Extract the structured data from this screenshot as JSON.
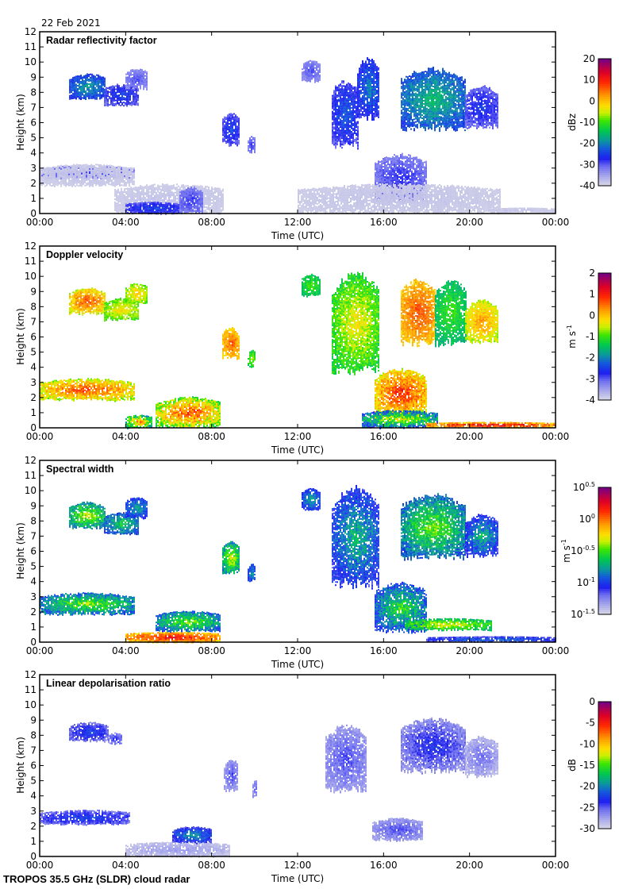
{
  "header": {
    "date": "22 Feb 2021"
  },
  "footer": {
    "instrument": "TROPOS 35.5 GHz (SLDR) cloud radar"
  },
  "chart_data": [
    {
      "type": "heatmap",
      "title": "Radar reflectivity factor",
      "xlabel": "Time (UTC)",
      "ylabel": "Height (km)",
      "xlim": [
        0,
        24
      ],
      "ylim": [
        0,
        12
      ],
      "xticks": [
        0,
        4,
        8,
        12,
        16,
        20,
        24
      ],
      "xtick_labels": [
        "00:00",
        "04:00",
        "08:00",
        "12:00",
        "16:00",
        "20:00",
        "00:00"
      ],
      "yticks": [
        0,
        1,
        2,
        3,
        4,
        5,
        6,
        7,
        8,
        9,
        10,
        11,
        12
      ],
      "ytick_labels": [
        "0",
        "1",
        "2",
        "3",
        "4",
        "5",
        "6",
        "7",
        "8",
        "9",
        "10",
        "11",
        "12"
      ],
      "colorbar": {
        "label": "dBz",
        "range": [
          -40,
          20
        ],
        "ticks": [
          20,
          10,
          0,
          -10,
          -20,
          -30,
          -40
        ],
        "tick_labels": [
          "20",
          "10",
          "0",
          "-10",
          "-20",
          "-30",
          "-40"
        ]
      },
      "regions": [
        {
          "t0": 1.4,
          "t1": 3.0,
          "h0": 7.5,
          "h1": 9.3,
          "v": -22,
          "spread": 8
        },
        {
          "t0": 3.0,
          "t1": 4.6,
          "h0": 7.1,
          "h1": 8.6,
          "v": -27,
          "spread": 6
        },
        {
          "t0": 4.0,
          "t1": 5.0,
          "h0": 8.2,
          "h1": 9.6,
          "v": -31,
          "spread": 4
        },
        {
          "t0": 8.5,
          "t1": 9.3,
          "h0": 4.5,
          "h1": 6.7,
          "v": -27,
          "spread": 6
        },
        {
          "t0": 9.7,
          "t1": 10.0,
          "h0": 4.0,
          "h1": 5.2,
          "v": -30,
          "spread": 4
        },
        {
          "t0": 0.0,
          "t1": 4.4,
          "h0": 2.3,
          "h1": 3.2,
          "v": -30,
          "spread": 4
        },
        {
          "t0": 0.0,
          "t1": 4.4,
          "h0": 1.8,
          "h1": 3.3,
          "v": -38,
          "spread": 1
        },
        {
          "t0": 3.5,
          "t1": 8.5,
          "h0": 0.0,
          "h1": 2.0,
          "v": -38,
          "spread": 1
        },
        {
          "t0": 4.0,
          "t1": 6.5,
          "h0": 0.0,
          "h1": 0.8,
          "v": -27,
          "spread": 6
        },
        {
          "t0": 6.5,
          "t1": 7.6,
          "h0": 0.0,
          "h1": 1.8,
          "v": -30,
          "spread": 4
        },
        {
          "t0": 13.6,
          "t1": 14.8,
          "h0": 4.3,
          "h1": 9.0,
          "v": -26,
          "spread": 8
        },
        {
          "t0": 14.8,
          "t1": 15.8,
          "h0": 6.2,
          "h1": 10.4,
          "v": -24,
          "spread": 8
        },
        {
          "t0": 12.2,
          "t1": 13.0,
          "h0": 8.7,
          "h1": 10.2,
          "v": -31,
          "spread": 4
        },
        {
          "t0": 15.6,
          "t1": 18.0,
          "h0": 0.8,
          "h1": 4.0,
          "v": -30,
          "spread": 5
        },
        {
          "t0": 12.0,
          "t1": 21.4,
          "h0": 0.0,
          "h1": 2.0,
          "v": -38,
          "spread": 1
        },
        {
          "t0": 16.8,
          "t1": 19.8,
          "h0": 5.4,
          "h1": 9.7,
          "v": -20,
          "spread": 9
        },
        {
          "t0": 19.8,
          "t1": 21.3,
          "h0": 5.6,
          "h1": 8.5,
          "v": -28,
          "spread": 6
        },
        {
          "t0": 21.0,
          "t1": 24.0,
          "h0": 0.1,
          "h1": 0.4,
          "v": -38,
          "spread": 1
        }
      ]
    },
    {
      "type": "heatmap",
      "title": "Doppler velocity",
      "xlabel": "Time (UTC)",
      "ylabel": "Height (km)",
      "xlim": [
        0,
        24
      ],
      "ylim": [
        0,
        12
      ],
      "xticks": [
        0,
        4,
        8,
        12,
        16,
        20,
        24
      ],
      "xtick_labels": [
        "00:00",
        "04:00",
        "08:00",
        "12:00",
        "16:00",
        "20:00",
        "00:00"
      ],
      "yticks": [
        0,
        1,
        2,
        3,
        4,
        5,
        6,
        7,
        8,
        9,
        10,
        11,
        12
      ],
      "ytick_labels": [
        "0",
        "1",
        "2",
        "3",
        "4",
        "5",
        "6",
        "7",
        "8",
        "9",
        "10",
        "11",
        "12"
      ],
      "colorbar": {
        "label": "m s-1",
        "range": [
          -4,
          2
        ],
        "ticks": [
          2,
          1,
          0,
          -1,
          -2,
          -3,
          -4
        ],
        "tick_labels": [
          "2",
          "1",
          "0",
          "-1",
          "-2",
          "-3",
          "-4"
        ]
      },
      "regions": [
        {
          "t0": 1.4,
          "t1": 3.0,
          "h0": 7.5,
          "h1": 9.3,
          "v": 0.1,
          "spread": 1.2
        },
        {
          "t0": 3.0,
          "t1": 4.6,
          "h0": 7.1,
          "h1": 8.6,
          "v": -0.6,
          "spread": 0.8
        },
        {
          "t0": 4.0,
          "t1": 5.0,
          "h0": 8.2,
          "h1": 9.6,
          "v": -0.5,
          "spread": 0.8
        },
        {
          "t0": 8.5,
          "t1": 9.3,
          "h0": 4.5,
          "h1": 6.7,
          "v": 0.2,
          "spread": 0.9
        },
        {
          "t0": 9.7,
          "t1": 10.0,
          "h0": 4.0,
          "h1": 5.2,
          "v": -1.0,
          "spread": 0.6
        },
        {
          "t0": 0.0,
          "t1": 4.4,
          "h0": 1.8,
          "h1": 3.3,
          "v": 0.0,
          "spread": 1.4
        },
        {
          "t0": 4.0,
          "t1": 5.2,
          "h0": 0.0,
          "h1": 0.9,
          "v": -0.8,
          "spread": 2.0
        },
        {
          "t0": 5.4,
          "t1": 8.4,
          "h0": 0.0,
          "h1": 2.1,
          "v": -0.2,
          "spread": 1.8
        },
        {
          "t0": 13.6,
          "t1": 15.8,
          "h0": 3.5,
          "h1": 10.4,
          "v": -0.8,
          "spread": 1.0
        },
        {
          "t0": 12.2,
          "t1": 13.0,
          "h0": 8.7,
          "h1": 10.2,
          "v": -1.2,
          "spread": 0.6
        },
        {
          "t0": 15.6,
          "t1": 18.0,
          "h0": 0.6,
          "h1": 4.0,
          "v": 0.2,
          "spread": 1.4
        },
        {
          "t0": 15.0,
          "t1": 18.5,
          "h0": 0.0,
          "h1": 1.2,
          "v": -1.5,
          "spread": 2.0
        },
        {
          "t0": 16.8,
          "t1": 18.4,
          "h0": 5.4,
          "h1": 9.9,
          "v": 0.3,
          "spread": 0.8
        },
        {
          "t0": 18.4,
          "t1": 19.8,
          "h0": 5.4,
          "h1": 9.9,
          "v": -1.3,
          "spread": 0.6
        },
        {
          "t0": 19.8,
          "t1": 21.3,
          "h0": 5.6,
          "h1": 8.5,
          "v": -0.2,
          "spread": 0.9
        },
        {
          "t0": 18.0,
          "t1": 24.0,
          "h0": 0.05,
          "h1": 0.4,
          "v": 0.6,
          "spread": 1.5
        }
      ]
    },
    {
      "type": "heatmap",
      "title": "Spectral width",
      "xlabel": "Time (UTC)",
      "ylabel": "Height (km)",
      "xlim": [
        0,
        24
      ],
      "ylim": [
        0,
        12
      ],
      "xticks": [
        0,
        4,
        8,
        12,
        16,
        20,
        24
      ],
      "xtick_labels": [
        "00:00",
        "04:00",
        "08:00",
        "12:00",
        "16:00",
        "20:00",
        "00:00"
      ],
      "yticks": [
        0,
        1,
        2,
        3,
        4,
        5,
        6,
        7,
        8,
        9,
        10,
        11,
        12
      ],
      "ytick_labels": [
        "0",
        "1",
        "2",
        "3",
        "4",
        "5",
        "6",
        "7",
        "8",
        "9",
        "10",
        "11",
        "12"
      ],
      "colorbar": {
        "label": "m s-1",
        "scale": "log10",
        "range": [
          -1.5,
          0.5
        ],
        "ticks": [
          0.5,
          0,
          -0.5,
          -1,
          -1.5
        ],
        "tick_labels": [
          "10^0.5",
          "10^0",
          "10^-0.5",
          "10^-1",
          "10^-1.5"
        ]
      },
      "regions": [
        {
          "t0": 1.4,
          "t1": 3.0,
          "h0": 7.5,
          "h1": 9.3,
          "v": -0.6,
          "spread": 0.5
        },
        {
          "t0": 3.0,
          "t1": 4.6,
          "h0": 7.1,
          "h1": 8.6,
          "v": -0.8,
          "spread": 0.4
        },
        {
          "t0": 4.0,
          "t1": 5.0,
          "h0": 8.2,
          "h1": 9.6,
          "v": -0.9,
          "spread": 0.3
        },
        {
          "t0": 8.5,
          "t1": 9.3,
          "h0": 4.5,
          "h1": 6.7,
          "v": -0.6,
          "spread": 0.5
        },
        {
          "t0": 9.7,
          "t1": 10.0,
          "h0": 4.0,
          "h1": 5.2,
          "v": -0.9,
          "spread": 0.3
        },
        {
          "t0": 0.0,
          "t1": 4.4,
          "h0": 1.8,
          "h1": 3.3,
          "v": -0.7,
          "spread": 0.5
        },
        {
          "t0": 4.0,
          "t1": 8.4,
          "h0": 0.0,
          "h1": 0.7,
          "v": 0.0,
          "spread": 0.4
        },
        {
          "t0": 5.4,
          "t1": 8.4,
          "h0": 0.7,
          "h1": 2.1,
          "v": -0.7,
          "spread": 0.5
        },
        {
          "t0": 13.6,
          "t1": 15.8,
          "h0": 3.5,
          "h1": 10.4,
          "v": -0.9,
          "spread": 0.4
        },
        {
          "t0": 12.2,
          "t1": 13.0,
          "h0": 8.7,
          "h1": 10.2,
          "v": -0.9,
          "spread": 0.3
        },
        {
          "t0": 15.6,
          "t1": 18.0,
          "h0": 0.6,
          "h1": 4.0,
          "v": -0.8,
          "spread": 0.5
        },
        {
          "t0": 17.0,
          "t1": 21.0,
          "h0": 0.8,
          "h1": 1.6,
          "v": -0.5,
          "spread": 0.4
        },
        {
          "t0": 16.8,
          "t1": 19.8,
          "h0": 5.4,
          "h1": 9.9,
          "v": -0.7,
          "spread": 0.5
        },
        {
          "t0": 19.8,
          "t1": 21.3,
          "h0": 5.6,
          "h1": 8.5,
          "v": -0.9,
          "spread": 0.4
        },
        {
          "t0": 18.0,
          "t1": 24.0,
          "h0": 0.05,
          "h1": 0.4,
          "v": -1.0,
          "spread": 0.3
        }
      ]
    },
    {
      "type": "heatmap",
      "title": "Linear depolarisation ratio",
      "xlabel": "Time (UTC)",
      "ylabel": "Height (km)",
      "xlim": [
        0,
        24
      ],
      "ylim": [
        0,
        12
      ],
      "xticks": [
        0,
        4,
        8,
        12,
        16,
        20,
        24
      ],
      "xtick_labels": [
        "00:00",
        "04:00",
        "08:00",
        "12:00",
        "16:00",
        "20:00",
        "00:00"
      ],
      "yticks": [
        0,
        1,
        2,
        3,
        4,
        5,
        6,
        7,
        8,
        9,
        10,
        11,
        12
      ],
      "ytick_labels": [
        "0",
        "1",
        "2",
        "3",
        "4",
        "5",
        "6",
        "7",
        "8",
        "9",
        "10",
        "11",
        "12"
      ],
      "colorbar": {
        "label": "dB",
        "range": [
          -30,
          0
        ],
        "ticks": [
          0,
          -5,
          -10,
          -15,
          -20,
          -25,
          -30
        ],
        "tick_labels": [
          "0",
          "-5",
          "-10",
          "-15",
          "-20",
          "-25",
          "-30"
        ]
      },
      "regions": [
        {
          "t0": 1.4,
          "t1": 3.2,
          "h0": 7.6,
          "h1": 8.9,
          "v": -24,
          "spread": 4
        },
        {
          "t0": 3.2,
          "t1": 3.8,
          "h0": 7.4,
          "h1": 8.2,
          "v": -25,
          "spread": 3
        },
        {
          "t0": 8.6,
          "t1": 9.2,
          "h0": 4.3,
          "h1": 6.5,
          "v": -26,
          "spread": 3
        },
        {
          "t0": 9.9,
          "t1": 10.1,
          "h0": 3.9,
          "h1": 5.1,
          "v": -26,
          "spread": 2
        },
        {
          "t0": 0.0,
          "t1": 4.2,
          "h0": 2.1,
          "h1": 3.1,
          "v": -24,
          "spread": 4
        },
        {
          "t0": 4.0,
          "t1": 8.8,
          "h0": 0.0,
          "h1": 1.0,
          "v": -28,
          "spread": 2
        },
        {
          "t0": 6.2,
          "t1": 8.0,
          "h0": 0.9,
          "h1": 2.0,
          "v": -22,
          "spread": 5
        },
        {
          "t0": 13.3,
          "t1": 15.2,
          "h0": 4.2,
          "h1": 8.8,
          "v": -26,
          "spread": 3
        },
        {
          "t0": 15.5,
          "t1": 17.8,
          "h0": 1.0,
          "h1": 2.6,
          "v": -26,
          "spread": 3
        },
        {
          "t0": 16.8,
          "t1": 19.8,
          "h0": 5.5,
          "h1": 9.2,
          "v": -25,
          "spread": 4
        },
        {
          "t0": 19.8,
          "t1": 21.3,
          "h0": 5.2,
          "h1": 8.0,
          "v": -27,
          "spread": 3
        }
      ]
    }
  ]
}
